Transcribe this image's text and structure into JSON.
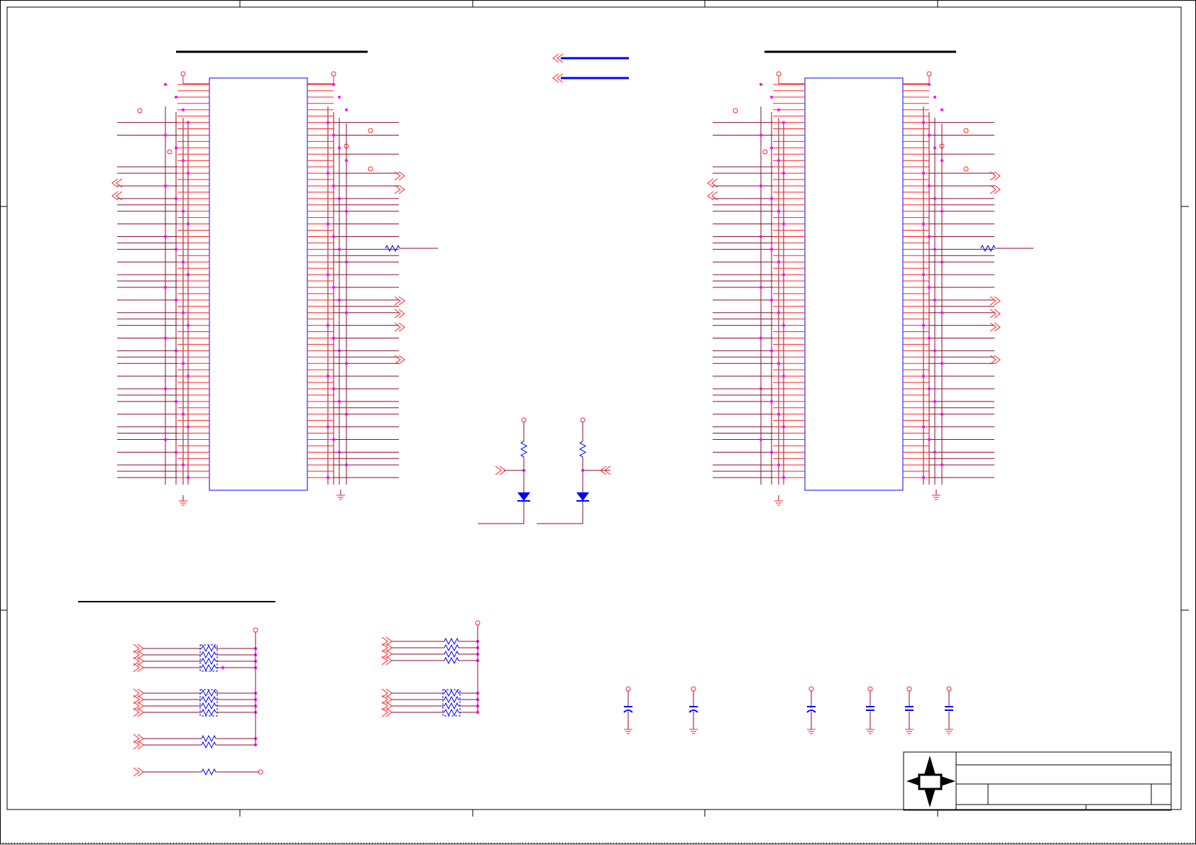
{
  "sheet": {
    "colors": {
      "wire": "#8b0a2b",
      "pin": "#ff2222",
      "component": "#0000ff",
      "junction": "#ff00ff",
      "power": "#ff2222",
      "border": "#000000"
    },
    "icons": [
      "connector-left-arrow-icon",
      "connector-right-arrow-icon",
      "resistor-icon",
      "led-icon",
      "capacitor-icon",
      "ground-icon",
      "power-rail-icon",
      "compass-logo-icon"
    ],
    "blocks": {
      "left_ic": {
        "pins_per_side": 32
      },
      "right_ic": {
        "pins_per_side": 32
      },
      "led_pair": {
        "count": 2
      },
      "resistor_banks": {
        "groups": 4
      },
      "decoupling_caps": {
        "count": 6
      }
    },
    "title_block": {}
  }
}
